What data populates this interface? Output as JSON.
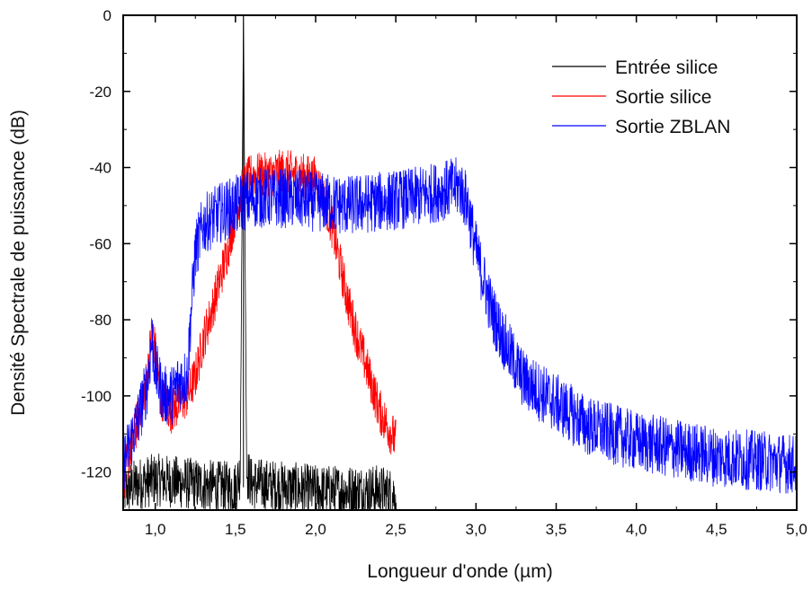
{
  "chart_data": {
    "type": "line",
    "title": "",
    "xlabel": "Longueur d'onde (µm)",
    "ylabel": "Densité Spectrale de puissance (dB)",
    "xlim": [
      0.8,
      5.0
    ],
    "ylim": [
      -130,
      0
    ],
    "x_ticks": [
      "1,0",
      "1,5",
      "2,0",
      "2,5",
      "3,0",
      "3,5",
      "4,0",
      "4,5",
      "5,0"
    ],
    "x_tick_values": [
      1.0,
      1.5,
      2.0,
      2.5,
      3.0,
      3.5,
      4.0,
      4.5,
      5.0
    ],
    "y_ticks": [
      "0",
      "-20",
      "-40",
      "-60",
      "-80",
      "-100",
      "-120"
    ],
    "y_tick_values": [
      0,
      -20,
      -40,
      -60,
      -80,
      -100,
      -120
    ],
    "grid": false,
    "legend_position": "top-right",
    "series": [
      {
        "name": "Entrée silice",
        "color": "#000000",
        "x": [
          0.8,
          0.9,
          1.0,
          1.2,
          1.4,
          1.5,
          1.53,
          1.55,
          1.57,
          1.6,
          1.8,
          2.0,
          2.2,
          2.4,
          2.5
        ],
        "y": [
          -125,
          -123,
          -122,
          -123,
          -124,
          -124,
          -120,
          0,
          -120,
          -123,
          -124,
          -125,
          -125,
          -125,
          -126
        ]
      },
      {
        "name": "Sortie silice",
        "color": "#ff0000",
        "x": [
          0.8,
          0.9,
          0.95,
          0.98,
          1.0,
          1.03,
          1.1,
          1.2,
          1.25,
          1.3,
          1.35,
          1.4,
          1.45,
          1.5,
          1.55,
          1.6,
          1.7,
          1.8,
          1.9,
          2.0,
          2.05,
          2.1,
          2.15,
          2.2,
          2.25,
          2.3,
          2.35,
          2.4,
          2.45,
          2.5
        ],
        "y": [
          -122,
          -105,
          -95,
          -82,
          -88,
          -100,
          -104,
          -100,
          -95,
          -85,
          -78,
          -70,
          -62,
          -52,
          -45,
          -42,
          -42,
          -41,
          -42,
          -43,
          -48,
          -55,
          -65,
          -75,
          -83,
          -90,
          -97,
          -104,
          -108,
          -112
        ]
      },
      {
        "name": "Sortie ZBLAN",
        "color": "#0000ff",
        "x": [
          0.8,
          0.9,
          0.95,
          0.98,
          1.0,
          1.05,
          1.1,
          1.15,
          1.2,
          1.22,
          1.25,
          1.3,
          1.4,
          1.5,
          1.6,
          1.8,
          2.0,
          2.2,
          2.4,
          2.6,
          2.8,
          2.9,
          2.95,
          3.0,
          3.05,
          3.1,
          3.2,
          3.3,
          3.5,
          3.7,
          4.0,
          4.5,
          5.0
        ],
        "y": [
          -118,
          -105,
          -97,
          -85,
          -93,
          -100,
          -100,
          -96,
          -95,
          -80,
          -62,
          -55,
          -52,
          -50,
          -48,
          -48,
          -49,
          -50,
          -49,
          -48,
          -46,
          -45,
          -50,
          -62,
          -70,
          -78,
          -88,
          -96,
          -102,
          -108,
          -112,
          -116,
          -118
        ]
      }
    ]
  }
}
